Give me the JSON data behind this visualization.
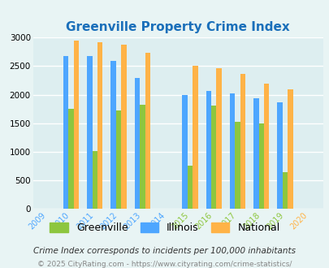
{
  "title": "Greenville Property Crime Index",
  "title_color": "#1a6fba",
  "years": [
    2009,
    2010,
    2011,
    2012,
    2013,
    2014,
    2015,
    2016,
    2017,
    2018,
    2019,
    2020
  ],
  "greenville": [
    null,
    1750,
    1010,
    1720,
    1820,
    null,
    760,
    1810,
    1530,
    1500,
    650,
    null
  ],
  "illinois": [
    null,
    2670,
    2680,
    2590,
    2290,
    null,
    2000,
    2060,
    2020,
    1940,
    1870,
    null
  ],
  "national": [
    null,
    2940,
    2920,
    2870,
    2740,
    null,
    2510,
    2470,
    2360,
    2200,
    2100,
    null
  ],
  "greenville_color": "#8dc63f",
  "illinois_color": "#4da6ff",
  "national_color": "#ffb347",
  "ylim": [
    0,
    3000
  ],
  "yticks": [
    0,
    500,
    1000,
    1500,
    2000,
    2500,
    3000
  ],
  "bg_color": "#e8f4f4",
  "plot_bg": "#ddeef0",
  "grid_color": "#ffffff",
  "footnote1": "Crime Index corresponds to incidents per 100,000 inhabitants",
  "footnote2": "© 2025 CityRating.com - https://www.cityrating.com/crime-statistics/",
  "footnote1_color": "#333333",
  "footnote2_color": "#888888",
  "xtick_colors": [
    "#4da6ff",
    "#4da6ff",
    "#4da6ff",
    "#4da6ff",
    "#4da6ff",
    "#4da6ff",
    "#8dc63f",
    "#8dc63f",
    "#8dc63f",
    "#8dc63f",
    "#8dc63f",
    "#ffb347"
  ]
}
